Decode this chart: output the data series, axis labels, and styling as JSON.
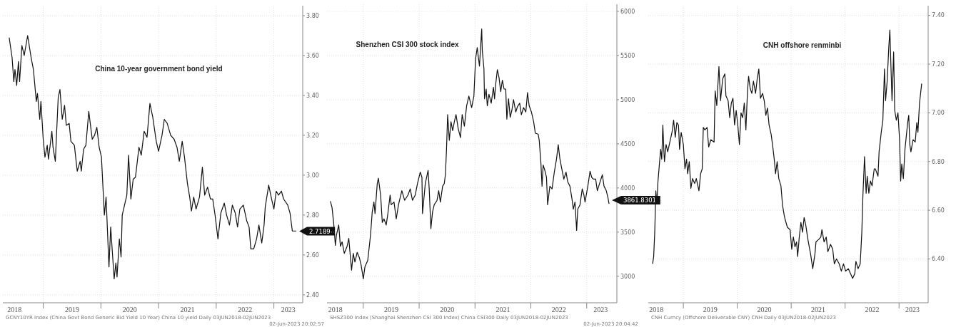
{
  "chart_data": [
    {
      "type": "line",
      "title": "China 10-year government bond yield",
      "color": "#111111",
      "grid": true,
      "line_style": "solid",
      "x": [
        2018.41,
        2018.46,
        2018.49,
        2018.51,
        2018.54,
        2018.57,
        2018.59,
        2018.63,
        2018.67,
        2018.73,
        2018.79,
        2018.83,
        2018.88,
        2018.9,
        2018.94,
        2018.96,
        2019.0,
        2019.03,
        2019.07,
        2019.09,
        2019.15,
        2019.17,
        2019.21,
        2019.26,
        2019.29,
        2019.33,
        2019.37,
        2019.4,
        2019.45,
        2019.48,
        2019.54,
        2019.59,
        2019.64,
        2019.66,
        2019.7,
        2019.74,
        2019.79,
        2019.85,
        2019.89,
        2019.93,
        2019.97,
        2020.01,
        2020.06,
        2020.09,
        2020.14,
        2020.17,
        2020.23,
        2020.26,
        2020.28,
        2020.32,
        2020.35,
        2020.37,
        2020.41,
        2020.45,
        2020.48,
        2020.52,
        2020.56,
        2020.6,
        2020.66,
        2020.7,
        2020.75,
        2020.8,
        2020.85,
        2020.9,
        2020.96,
        2021.0,
        2021.06,
        2021.1,
        2021.15,
        2021.21,
        2021.27,
        2021.32,
        2021.36,
        2021.41,
        2021.45,
        2021.5,
        2021.54,
        2021.57,
        2021.61,
        2021.65,
        2021.71,
        2021.76,
        2021.8,
        2021.85,
        2021.9,
        2021.94,
        2021.98,
        2022.03,
        2022.08,
        2022.14,
        2022.18,
        2022.23,
        2022.28,
        2022.33,
        2022.37,
        2022.41,
        2022.47,
        2022.53,
        2022.57,
        2022.6,
        2022.65,
        2022.7,
        2022.74,
        2022.79,
        2022.83,
        2022.85,
        2022.91,
        2022.96,
        2023.0,
        2023.04,
        2023.08,
        2023.13,
        2023.17,
        2023.24,
        2023.28,
        2023.32,
        2023.39
      ],
      "values": [
        3.69,
        3.59,
        3.47,
        3.53,
        3.45,
        3.57,
        3.47,
        3.65,
        3.6,
        3.7,
        3.59,
        3.53,
        3.37,
        3.41,
        3.28,
        3.37,
        3.18,
        3.09,
        3.15,
        3.08,
        3.22,
        3.14,
        3.07,
        3.39,
        3.43,
        3.28,
        3.35,
        3.25,
        3.26,
        3.17,
        3.15,
        3.02,
        3.07,
        3.02,
        3.13,
        3.15,
        3.32,
        3.18,
        3.2,
        3.24,
        3.14,
        3.09,
        2.8,
        2.89,
        2.54,
        2.74,
        2.48,
        2.56,
        2.49,
        2.68,
        2.59,
        2.8,
        2.85,
        2.9,
        3.1,
        2.88,
        2.98,
        2.99,
        3.14,
        3.1,
        3.22,
        3.19,
        3.36,
        3.29,
        3.17,
        3.12,
        3.2,
        3.28,
        3.26,
        3.2,
        3.18,
        3.14,
        3.07,
        3.17,
        3.09,
        2.96,
        2.89,
        2.82,
        2.89,
        2.83,
        2.89,
        3.04,
        2.9,
        2.94,
        2.88,
        2.88,
        2.8,
        2.68,
        2.81,
        2.86,
        2.8,
        2.75,
        2.85,
        2.81,
        2.74,
        2.83,
        2.85,
        2.77,
        2.74,
        2.63,
        2.63,
        2.68,
        2.75,
        2.66,
        2.75,
        2.84,
        2.95,
        2.88,
        2.83,
        2.92,
        2.9,
        2.92,
        2.88,
        2.85,
        2.81,
        2.72,
        2.72
      ],
      "xlim": [
        2018.3,
        2023.5
      ],
      "ylim": [
        2.36,
        3.85
      ],
      "xticks": [
        {
          "value": 2019,
          "label": null
        },
        {
          "value": 2020,
          "label": null
        },
        {
          "value": 2021,
          "label": null
        },
        {
          "value": 2022,
          "label": null
        },
        {
          "value": 2023,
          "label": null
        },
        {
          "value": 2018.5,
          "label": "2018"
        },
        {
          "value": 2019.5,
          "label": "2019"
        },
        {
          "value": 2020.5,
          "label": "2020"
        },
        {
          "value": 2021.5,
          "label": "2021"
        },
        {
          "value": 2022.5,
          "label": "2022"
        },
        {
          "value": 2023.25,
          "label": "2023"
        }
      ],
      "yticks": [
        {
          "value": 2.4,
          "label": "2.40"
        },
        {
          "value": 2.6,
          "label": "2.60"
        },
        {
          "value": 2.8,
          "label": "2.80"
        },
        {
          "value": 3.0,
          "label": "3.00"
        },
        {
          "value": 3.2,
          "label": "3.20"
        },
        {
          "value": 3.4,
          "label": "3.40"
        },
        {
          "value": 3.6,
          "label": "3.60"
        },
        {
          "value": 3.8,
          "label": "3.80"
        }
      ],
      "annotations": [
        {
          "text": "2.7189",
          "x": 2023.39,
          "y": 2.7189
        },
        "GCNY10YR Index (China Govt Bond Generic Bid Yield 10 Year) China 10 yield  Daily 03JUN2018-02JUN2023",
        "02-Jun-2023 20:02:57"
      ]
    },
    {
      "type": "line",
      "title": "Shenzhen CSI 300 stock index",
      "color": "#111111",
      "grid": true,
      "line_style": "solid",
      "x": [
        2018.41,
        2018.44,
        2018.47,
        2018.5,
        2018.52,
        2018.56,
        2018.59,
        2018.62,
        2018.66,
        2018.71,
        2018.74,
        2018.77,
        2018.79,
        2018.82,
        2018.85,
        2018.89,
        2018.93,
        2018.96,
        2019.0,
        2019.03,
        2019.08,
        2019.13,
        2019.16,
        2019.19,
        2019.21,
        2019.25,
        2019.27,
        2019.31,
        2019.34,
        2019.37,
        2019.41,
        2019.44,
        2019.48,
        2019.5,
        2019.55,
        2019.59,
        2019.63,
        2019.69,
        2019.74,
        2019.8,
        2019.84,
        2019.88,
        2019.93,
        2019.97,
        2020.02,
        2020.05,
        2020.06,
        2020.11,
        2020.16,
        2020.18,
        2020.21,
        2020.24,
        2020.27,
        2020.32,
        2020.35,
        2020.38,
        2020.42,
        2020.45,
        2020.47,
        2020.49,
        2020.51,
        2020.54,
        2020.57,
        2020.6,
        2020.63,
        2020.66,
        2020.7,
        2020.74,
        2020.77,
        2020.81,
        2020.85,
        2020.89,
        2020.94,
        2020.98,
        2021.01,
        2021.04,
        2021.06,
        2021.08,
        2021.1,
        2021.12,
        2021.13,
        2021.16,
        2021.17,
        2021.2,
        2021.22,
        2021.25,
        2021.29,
        2021.33,
        2021.35,
        2021.37,
        2021.4,
        2021.43,
        2021.46,
        2021.49,
        2021.52,
        2021.55,
        2021.57,
        2021.6,
        2021.63,
        2021.66,
        2021.69,
        2021.73,
        2021.76,
        2021.8,
        2021.83,
        2021.87,
        2021.91,
        2021.94,
        2021.97,
        2022.01,
        2022.05,
        2022.08,
        2022.13,
        2022.15,
        2022.18,
        2022.2,
        2022.22,
        2022.25,
        2022.28,
        2022.3,
        2022.34,
        2022.38,
        2022.42,
        2022.46,
        2022.49,
        2022.52,
        2022.55,
        2022.59,
        2022.63,
        2022.66,
        2022.7,
        2022.74,
        2022.76,
        2022.79,
        2022.82,
        2022.84,
        2022.88,
        2022.92,
        2022.95,
        2022.97,
        2023.02,
        2023.06,
        2023.09,
        2023.12,
        2023.16,
        2023.19,
        2023.23,
        2023.28,
        2023.31,
        2023.35,
        2023.38,
        2023.4
      ],
      "values": [
        3850,
        3780,
        3600,
        3350,
        3470,
        3580,
        3340,
        3390,
        3260,
        3340,
        3430,
        3210,
        3070,
        3260,
        3160,
        3270,
        3210,
        3130,
        2970,
        3110,
        3180,
        3470,
        3730,
        3840,
        3710,
        4050,
        4110,
        3920,
        3610,
        3650,
        3580,
        3710,
        3920,
        3810,
        3840,
        3650,
        3810,
        3970,
        3860,
        3920,
        3990,
        3860,
        3920,
        4050,
        4180,
        4120,
        3710,
        4050,
        4200,
        3990,
        3540,
        3730,
        3810,
        3860,
        3970,
        3840,
        4020,
        4050,
        4150,
        4440,
        4830,
        4540,
        4750,
        4650,
        4750,
        4830,
        4670,
        4570,
        4830,
        4700,
        4930,
        5040,
        4910,
        5040,
        5460,
        5590,
        5480,
        5380,
        5590,
        5800,
        5560,
        5350,
        5010,
        5120,
        4930,
        5060,
        4960,
        5140,
        5010,
        5170,
        5340,
        5250,
        5090,
        5220,
        5120,
        5120,
        4780,
        5010,
        4800,
        4880,
        5000,
        4860,
        4920,
        4960,
        4830,
        4910,
        4860,
        5080,
        4930,
        4860,
        4750,
        4620,
        4610,
        4540,
        4280,
        4020,
        4260,
        4200,
        4120,
        3810,
        4020,
        3990,
        4180,
        4330,
        4490,
        4330,
        4230,
        4100,
        4180,
        4070,
        4020,
        3860,
        3760,
        3840,
        3520,
        3760,
        3810,
        3990,
        3920,
        3840,
        4020,
        4190,
        4120,
        4100,
        4100,
        3970,
        4050,
        4150,
        4020,
        3970,
        3890,
        3820
      ],
      "xlim": [
        2018.35,
        2023.54
      ],
      "ylim": [
        2700,
        6080
      ],
      "xticks": [
        {
          "value": 2019,
          "label": null
        },
        {
          "value": 2020,
          "label": null
        },
        {
          "value": 2021,
          "label": null
        },
        {
          "value": 2022,
          "label": null
        },
        {
          "value": 2023,
          "label": null
        },
        {
          "value": 2018.5,
          "label": "2018"
        },
        {
          "value": 2019.5,
          "label": "2019"
        },
        {
          "value": 2020.5,
          "label": "2020"
        },
        {
          "value": 2021.5,
          "label": "2021"
        },
        {
          "value": 2022.5,
          "label": "2022"
        },
        {
          "value": 2023.25,
          "label": "2023"
        }
      ],
      "yticks": [
        3000,
        3500,
        4000,
        4500,
        5000,
        5500,
        6000
      ],
      "annotations": [
        {
          "text": "3861.8301",
          "x": 2023.4,
          "y": 3861.8301
        },
        "SHSZ300 Index (Shanghai Shenzhen CSI 300 Index) China CSI300  Daily 03JUN2018-02JUN2023",
        "02-Jun-2023 20:04:42"
      ]
    },
    {
      "type": "line",
      "title": "CNH offshore renminbi",
      "color": "#111111",
      "grid": true,
      "line_style": "solid",
      "x": [
        2018.43,
        2018.45,
        2018.47,
        2018.49,
        2018.51,
        2018.53,
        2018.56,
        2018.58,
        2018.6,
        2018.62,
        2018.64,
        2018.65,
        2018.68,
        2018.71,
        2018.76,
        2018.79,
        2018.82,
        2018.85,
        2018.88,
        2018.91,
        2018.93,
        2018.96,
        2019.0,
        2019.03,
        2019.06,
        2019.08,
        2019.11,
        2019.14,
        2019.17,
        2019.21,
        2019.24,
        2019.29,
        2019.32,
        2019.35,
        2019.37,
        2019.4,
        2019.44,
        2019.47,
        2019.51,
        2019.57,
        2019.59,
        2019.62,
        2019.64,
        2019.66,
        2019.69,
        2019.73,
        2019.77,
        2019.79,
        2019.83,
        2019.86,
        2019.89,
        2019.92,
        2019.95,
        2019.98,
        2020.01,
        2020.04,
        2020.07,
        2020.1,
        2020.13,
        2020.16,
        2020.19,
        2020.21,
        2020.24,
        2020.27,
        2020.3,
        2020.34,
        2020.37,
        2020.4,
        2020.43,
        2020.47,
        2020.5,
        2020.53,
        2020.56,
        2020.59,
        2020.63,
        2020.67,
        2020.69,
        2020.71,
        2020.74,
        2020.77,
        2020.81,
        2020.84,
        2020.87,
        2020.89,
        2020.93,
        2020.98,
        2021.01,
        2021.04,
        2021.07,
        2021.1,
        2021.12,
        2021.15,
        2021.18,
        2021.21,
        2021.24,
        2021.27,
        2021.31,
        2021.36,
        2021.4,
        2021.44,
        2021.46,
        2021.51,
        2021.55,
        2021.57,
        2021.61,
        2021.65,
        2021.68,
        2021.73,
        2021.77,
        2021.8,
        2021.84,
        2021.89,
        2021.93,
        2021.97,
        2022.01,
        2022.06,
        2022.1,
        2022.14,
        2022.18,
        2022.2,
        2022.24,
        2022.28,
        2022.31,
        2022.33,
        2022.36,
        2022.39,
        2022.41,
        2022.44,
        2022.47,
        2022.5,
        2022.54,
        2022.56,
        2022.61,
        2022.63,
        2022.67,
        2022.7,
        2022.73,
        2022.75,
        2022.78,
        2022.81,
        2022.83,
        2022.85,
        2022.87,
        2022.9,
        2022.92,
        2022.95,
        2022.98,
        2023.01,
        2023.03,
        2023.05,
        2023.08,
        2023.11,
        2023.16,
        2023.18,
        2023.2,
        2023.22,
        2023.26,
        2023.3,
        2023.33,
        2023.35,
        2023.38,
        2023.42
      ],
      "values": [
        6.38,
        6.41,
        6.51,
        6.68,
        6.63,
        6.72,
        6.8,
        6.85,
        6.81,
        6.95,
        6.84,
        6.8,
        6.87,
        6.84,
        6.89,
        6.92,
        6.97,
        6.9,
        6.96,
        6.95,
        6.85,
        6.92,
        6.87,
        6.77,
        6.81,
        6.75,
        6.8,
        6.69,
        6.73,
        6.71,
        6.73,
        6.68,
        6.75,
        6.77,
        6.94,
        6.93,
        6.94,
        6.86,
        6.89,
        6.88,
        7.09,
        7.03,
        7.11,
        7.19,
        7.05,
        7.14,
        7.16,
        7.07,
        7.05,
        6.98,
        7.04,
        7.06,
        6.95,
        7.01,
        6.95,
        6.87,
        7.0,
        6.98,
        7.04,
        6.93,
        7.09,
        7.15,
        7.1,
        7.08,
        7.13,
        7.08,
        7.14,
        7.18,
        7.06,
        7.08,
        7.05,
        6.99,
        7.02,
        6.95,
        6.91,
        6.84,
        6.8,
        6.75,
        6.8,
        6.73,
        6.7,
        6.62,
        6.58,
        6.56,
        6.53,
        6.52,
        6.44,
        6.49,
        6.45,
        6.47,
        6.41,
        6.49,
        6.55,
        6.51,
        6.57,
        6.54,
        6.48,
        6.42,
        6.36,
        6.42,
        6.47,
        6.48,
        6.49,
        6.52,
        6.47,
        6.49,
        6.43,
        6.46,
        6.44,
        6.38,
        6.4,
        6.38,
        6.35,
        6.38,
        6.35,
        6.36,
        6.34,
        6.32,
        6.34,
        6.39,
        6.36,
        6.38,
        6.51,
        6.66,
        6.82,
        6.67,
        6.74,
        6.67,
        6.72,
        6.7,
        6.77,
        6.77,
        6.74,
        6.84,
        6.92,
        6.97,
        7.18,
        7.05,
        7.13,
        7.27,
        7.34,
        7.19,
        7.05,
        7.25,
        7.01,
        6.97,
        7.0,
        6.89,
        6.72,
        6.79,
        6.73,
        6.85,
        6.96,
        6.99,
        6.87,
        6.84,
        6.89,
        6.88,
        6.96,
        6.92,
        7.04,
        7.12
      ],
      "xlim": [
        2018.35,
        2023.54
      ],
      "ylim": [
        6.22,
        7.44
      ],
      "xticks": [
        {
          "value": 2019,
          "label": null
        },
        {
          "value": 2020,
          "label": null
        },
        {
          "value": 2021,
          "label": null
        },
        {
          "value": 2022,
          "label": null
        },
        {
          "value": 2023,
          "label": null
        },
        {
          "value": 2018.5,
          "label": "2018"
        },
        {
          "value": 2019.5,
          "label": "2019"
        },
        {
          "value": 2020.5,
          "label": "2020"
        },
        {
          "value": 2021.5,
          "label": "2021"
        },
        {
          "value": 2022.5,
          "label": "2022"
        },
        {
          "value": 2023.25,
          "label": "2023"
        }
      ],
      "yticks": [
        {
          "value": 6.4,
          "label": "6.40"
        },
        {
          "value": 6.6,
          "label": "6.60"
        },
        {
          "value": 6.8,
          "label": "6.80"
        },
        {
          "value": 7.0,
          "label": "7.00"
        },
        {
          "value": 7.2,
          "label": "7.20"
        },
        {
          "value": 7.4,
          "label": "7.40"
        }
      ],
      "annotations": [
        "CNH Curncy (Offshore Deliverable CNY) CNH  Daily 03JUN2018-02JUN2023"
      ]
    }
  ]
}
